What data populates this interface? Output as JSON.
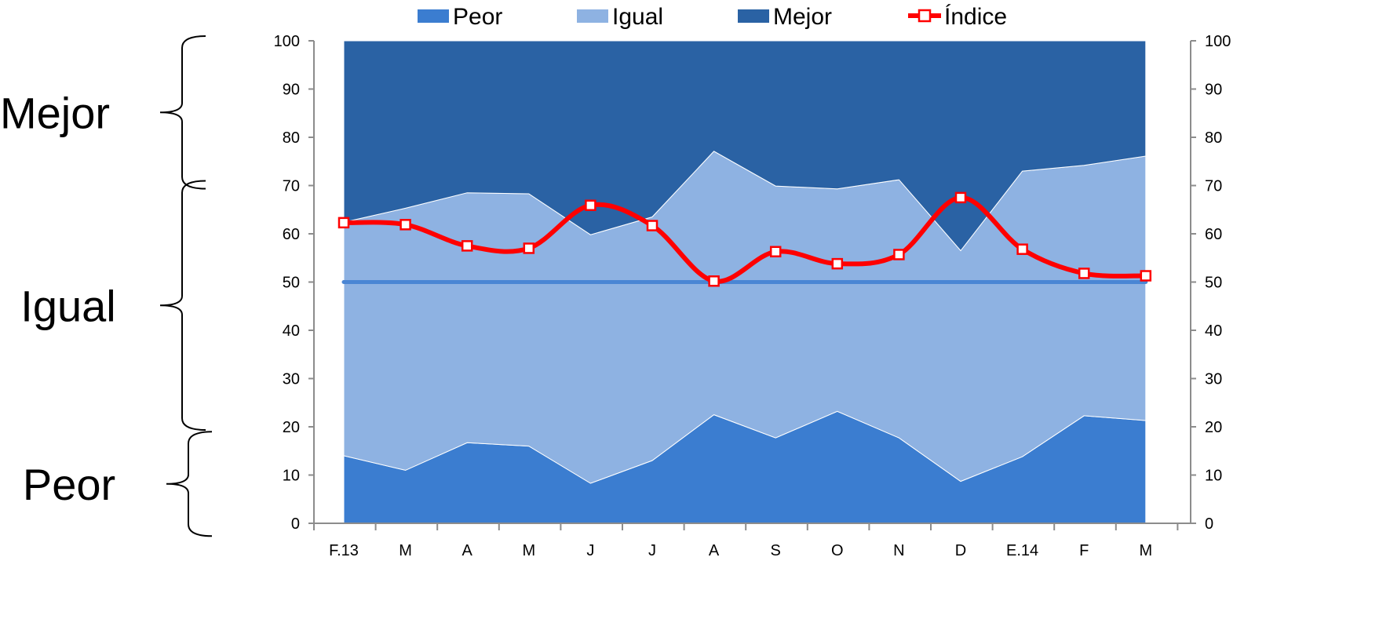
{
  "chart_data": {
    "type": "area",
    "categories": [
      "F.13",
      "M",
      "A",
      "M",
      "J",
      "J",
      "A",
      "S",
      "O",
      "N",
      "D",
      "E.14",
      "F",
      "M"
    ],
    "series": [
      {
        "name": "Peor",
        "kind": "stacked-area",
        "color": "#3b7dd0",
        "values": [
          14.0,
          11.0,
          16.7,
          16.0,
          8.3,
          13.0,
          22.5,
          17.7,
          23.2,
          17.7,
          8.7,
          13.8,
          22.3,
          21.3
        ]
      },
      {
        "name": "Igual",
        "kind": "stacked-area",
        "color": "#8eb2e2",
        "values": [
          48.4,
          54.3,
          51.8,
          52.3,
          51.5,
          50.5,
          54.6,
          52.2,
          46.1,
          53.5,
          47.8,
          59.2,
          51.9,
          54.8
        ]
      },
      {
        "name": "Mejor",
        "kind": "stacked-area",
        "color": "#2a62a4",
        "values": [
          37.6,
          34.7,
          31.5,
          31.7,
          40.2,
          36.5,
          22.9,
          30.1,
          30.7,
          28.8,
          43.5,
          27.0,
          25.8,
          23.9
        ]
      },
      {
        "name": "Índice",
        "kind": "line",
        "color": "#ff0000",
        "values": [
          62.3,
          61.9,
          57.5,
          57.0,
          65.9,
          61.7,
          50.2,
          56.3,
          53.8,
          55.7,
          67.5,
          56.8,
          51.8,
          51.3
        ]
      }
    ],
    "reference_line": {
      "value": 50,
      "color": "#4a86d4"
    },
    "ylim": [
      0,
      100
    ],
    "yticks": [
      0,
      10,
      20,
      30,
      40,
      50,
      60,
      70,
      80,
      90,
      100
    ],
    "legend_position": "top",
    "grid": false,
    "side_labels": [
      {
        "text": "Mejor",
        "range": [
          70,
          100
        ]
      },
      {
        "text": "Igual",
        "range": [
          20,
          70
        ]
      },
      {
        "text": "Peor",
        "range": [
          -2,
          18
        ]
      }
    ]
  }
}
